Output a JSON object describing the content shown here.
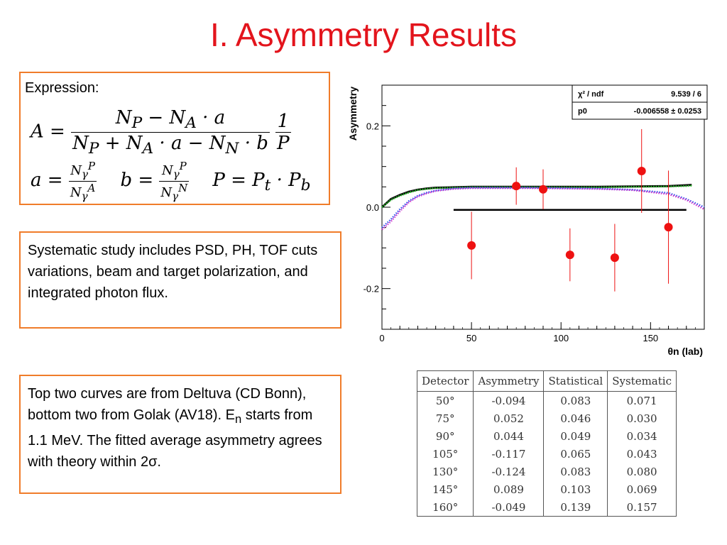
{
  "slide": {
    "title": "I. Asymmetry Results",
    "expression_label": "Expression:",
    "systematic_text": "Systematic study includes PSD, PH, TOF cuts variations, beam and target polarization, and integrated photon flux.",
    "note_text_1": "Top two curves are from Deltuva (CD Bonn), bottom two from Golak (AV18). E",
    "note_sub": "n",
    "note_text_2": " starts from 1.1 MeV. The fitted average asymmetry agrees with theory within 2σ."
  },
  "formula": {
    "A": "A",
    "eq": "=",
    "num_main": "N<sub>P</sub> − N<sub>A</sub> · a",
    "den_main": "N<sub>P</sub> + N<sub>A</sub> · a − N<sub>N</sub> · b",
    "num_p": "1",
    "den_p": "P",
    "a": "a =",
    "b": "b =",
    "P": "P = P<sub>t</sub> · P<sub>b</sub>"
  },
  "stats_box": {
    "chi2_label": "χ² / ndf",
    "chi2_value": "9.539 / 6",
    "p0_label": "p0",
    "p0_value": "-0.006558 ± 0.0253"
  },
  "chart_data": {
    "type": "scatter",
    "title": "",
    "xlabel": "θn (lab)",
    "ylabel": "Asymmetry",
    "xlim": [
      0,
      180
    ],
    "ylim": [
      -0.3,
      0.3
    ],
    "x_ticks": [
      0,
      50,
      100,
      150
    ],
    "y_ticks": [
      -0.2,
      0.0,
      0.2
    ],
    "y_tick_labels": [
      "-0.2",
      "0.0",
      "0.2"
    ],
    "points": {
      "x": [
        50,
        75,
        90,
        105,
        130,
        145,
        160
      ],
      "y": [
        -0.094,
        0.052,
        0.044,
        -0.117,
        -0.124,
        0.089,
        -0.049
      ],
      "err": [
        0.083,
        0.046,
        0.049,
        0.065,
        0.083,
        0.103,
        0.139
      ],
      "color": "#ee1111"
    },
    "fit_line": {
      "x": [
        40,
        170
      ],
      "y": [
        -0.006558,
        -0.006558
      ],
      "color": "#000000"
    },
    "theory_curves": [
      {
        "x": [
          0,
          5,
          10,
          15,
          20,
          25,
          30,
          40,
          50,
          60,
          80,
          100,
          120,
          140,
          160,
          170,
          173
        ],
        "y": [
          0.0,
          0.02,
          0.03,
          0.038,
          0.043,
          0.046,
          0.048,
          0.049,
          0.05,
          0.05,
          0.05,
          0.05,
          0.05,
          0.051,
          0.052,
          0.054,
          0.055
        ],
        "color": "#111111",
        "style": "solid"
      },
      {
        "x": [
          0,
          5,
          10,
          15,
          20,
          25,
          30,
          40,
          50,
          60,
          80,
          100,
          120,
          140,
          160,
          170,
          173
        ],
        "y": [
          0.0,
          0.018,
          0.028,
          0.036,
          0.042,
          0.045,
          0.047,
          0.048,
          0.049,
          0.049,
          0.049,
          0.049,
          0.049,
          0.05,
          0.051,
          0.052,
          0.053
        ],
        "color": "#22cc22",
        "style": "dotted"
      },
      {
        "x": [
          0,
          5,
          10,
          15,
          20,
          25,
          30,
          40,
          50,
          60,
          80,
          100,
          120,
          140,
          160,
          170,
          180
        ],
        "y": [
          -0.05,
          -0.03,
          -0.005,
          0.015,
          0.028,
          0.036,
          0.041,
          0.046,
          0.048,
          0.048,
          0.048,
          0.047,
          0.046,
          0.043,
          0.035,
          0.02,
          0.0
        ],
        "color": "#3355ee",
        "style": "dotted"
      },
      {
        "x": [
          0,
          5,
          10,
          15,
          20,
          25,
          30,
          40,
          50,
          60,
          80,
          100,
          120,
          140,
          160,
          170,
          180
        ],
        "y": [
          -0.055,
          -0.035,
          -0.01,
          0.012,
          0.026,
          0.034,
          0.04,
          0.045,
          0.047,
          0.047,
          0.047,
          0.046,
          0.045,
          0.042,
          0.032,
          0.018,
          -0.005
        ],
        "color": "#cc33cc",
        "style": "dotted"
      }
    ]
  },
  "table": {
    "headers": [
      "Detector",
      "Asymmetry",
      "Statistical",
      "Systematic"
    ],
    "rows": [
      [
        "50°",
        "-0.094",
        "0.083",
        "0.071"
      ],
      [
        "75°",
        "0.052",
        "0.046",
        "0.030"
      ],
      [
        "90°",
        "0.044",
        "0.049",
        "0.034"
      ],
      [
        "105°",
        "-0.117",
        "0.065",
        "0.043"
      ],
      [
        "130°",
        "-0.124",
        "0.083",
        "0.080"
      ],
      [
        "145°",
        "0.089",
        "0.103",
        "0.069"
      ],
      [
        "160°",
        "-0.049",
        "0.139",
        "0.157"
      ]
    ]
  }
}
